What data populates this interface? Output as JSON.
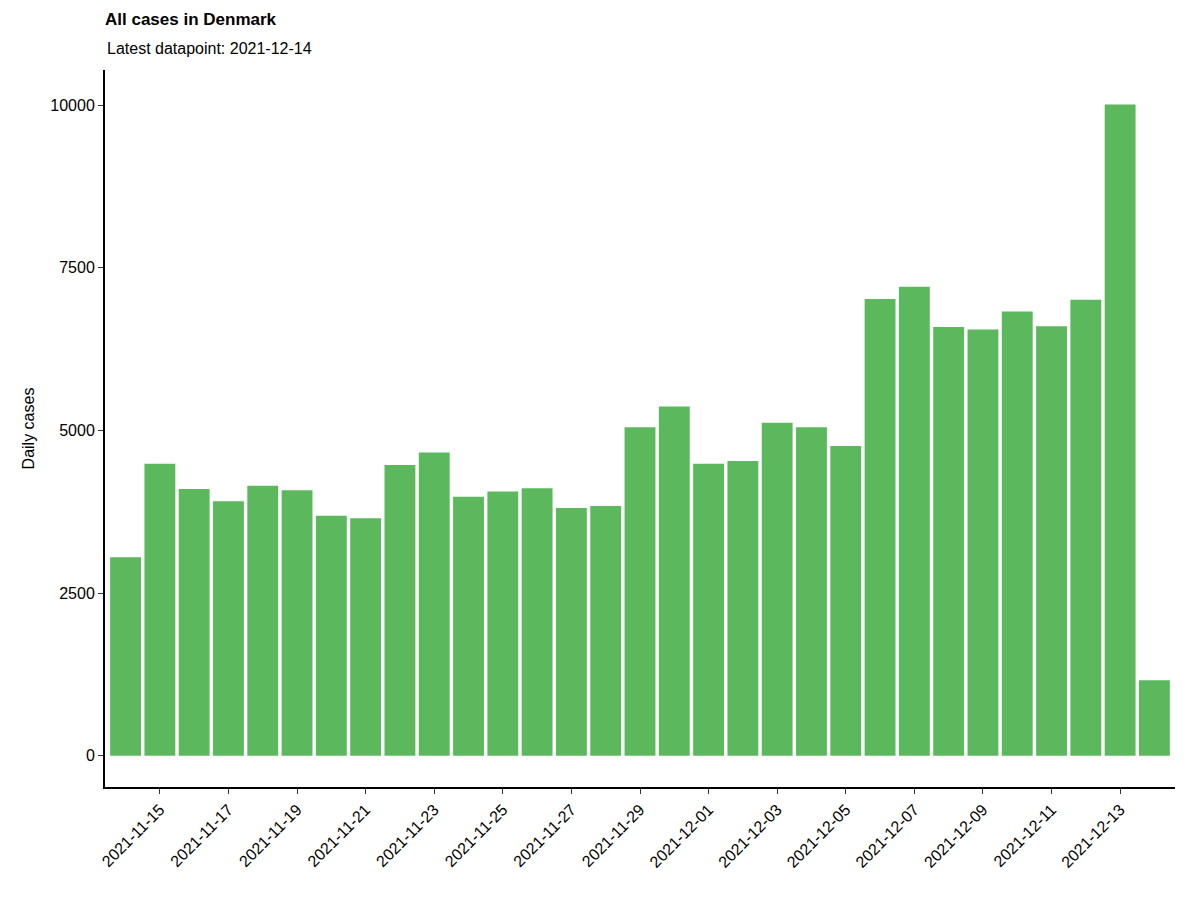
{
  "chart_data": {
    "type": "bar",
    "title": "All cases in Denmark",
    "subtitle": "Latest datapoint: 2021-12-14",
    "y_label": "Daily cases",
    "categories": [
      null,
      "2021-11-15",
      null,
      "2021-11-17",
      null,
      "2021-11-19",
      null,
      "2021-11-21",
      null,
      "2021-11-23",
      null,
      "2021-11-25",
      null,
      "2021-11-27",
      null,
      "2021-11-29",
      null,
      "2021-12-01",
      null,
      "2021-12-03",
      null,
      "2021-12-05",
      null,
      "2021-12-07",
      null,
      "2021-12-09",
      null,
      "2021-12-11",
      null,
      "2021-12-13",
      null
    ],
    "values": [
      3050,
      4490,
      4100,
      3910,
      4150,
      4080,
      3690,
      3650,
      4470,
      4660,
      3980,
      4060,
      4110,
      3810,
      3840,
      5050,
      5370,
      4490,
      4530,
      5120,
      5050,
      4760,
      7020,
      7210,
      6590,
      6550,
      6830,
      6600,
      7010,
      10010,
      1160
    ],
    "color": "#5cb85c",
    "ylim": [
      -480,
      10540
    ],
    "yticks": [
      0,
      2500,
      5000,
      7500,
      10000
    ],
    "grid": false
  }
}
